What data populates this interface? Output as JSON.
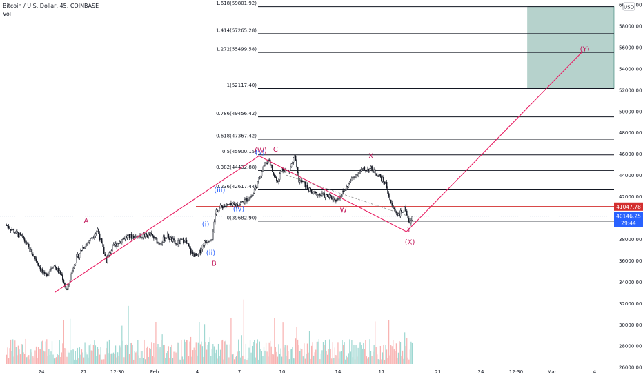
{
  "header": {
    "symbol": "Bitcoin / U.S. Dollar, 45, COINBASE",
    "volume_label": "Vol"
  },
  "currency_badge": "USD",
  "colors": {
    "candle": "#131722",
    "fib_line": "#131722",
    "wave_line": "#e91e63",
    "wave_red": "#c2185b",
    "wave_blue": "#2962ff",
    "target_box": "#2e7d6e",
    "resistance": "#d32f2f",
    "price_tag": "#2962ff",
    "dotted": "#90a4c8",
    "vol_up": "#26a69a",
    "vol_down": "#ef5350"
  },
  "chart_data": {
    "type": "candlestick",
    "x_tick_labels": [
      "24",
      "27",
      "12:30",
      "Feb",
      "4",
      "7",
      "10",
      "14",
      "17",
      "21",
      "24",
      "12:30",
      "Mar",
      "4"
    ],
    "y_axis": {
      "range": [
        26000,
        60000
      ],
      "tick_labels": [
        "60000.00",
        "58000.00",
        "56000.00",
        "54000.00",
        "52000.00",
        "50000.00",
        "48000.00",
        "46000.00",
        "44000.00",
        "42000.00",
        "40000.00",
        "38000.00",
        "36000.00",
        "34000.00",
        "32000.00",
        "30000.00",
        "28000.00",
        "26000.00"
      ]
    },
    "price_path": [
      [
        0,
        39300
      ],
      [
        4,
        38000
      ],
      [
        7,
        36000
      ],
      [
        9,
        34500
      ],
      [
        11,
        35600
      ],
      [
        13,
        34600
      ],
      [
        14.2,
        33100
      ],
      [
        16,
        35800
      ],
      [
        18,
        37200
      ],
      [
        20,
        38100
      ],
      [
        21.5,
        38900
      ],
      [
        23.5,
        36000
      ],
      [
        25,
        37200
      ],
      [
        28,
        38200
      ],
      [
        32,
        38300
      ],
      [
        34,
        38400
      ],
      [
        36,
        37600
      ],
      [
        38,
        38300
      ],
      [
        40,
        37500
      ],
      [
        42,
        38000
      ],
      [
        43.5,
        36800
      ],
      [
        45,
        36300
      ],
      [
        46.5,
        37600
      ],
      [
        48.5,
        38200
      ],
      [
        49.5,
        40700
      ],
      [
        51,
        41100
      ],
      [
        54,
        41200
      ],
      [
        56,
        41500
      ],
      [
        58,
        42100
      ],
      [
        59.5,
        43500
      ],
      [
        60.5,
        44800
      ],
      [
        62,
        45500
      ],
      [
        63,
        44000
      ],
      [
        64,
        43500
      ],
      [
        65,
        44600
      ],
      [
        66.5,
        44300
      ],
      [
        68,
        45700
      ],
      [
        69,
        43500
      ],
      [
        70,
        43300
      ],
      [
        72,
        42300
      ],
      [
        75,
        42100
      ],
      [
        78,
        41700
      ],
      [
        80,
        42700
      ],
      [
        82,
        43900
      ],
      [
        84,
        44500
      ],
      [
        86,
        44600
      ],
      [
        88,
        43900
      ],
      [
        89.5,
        43200
      ],
      [
        91,
        41000
      ],
      [
        92.5,
        40300
      ],
      [
        94,
        40800
      ],
      [
        95,
        39400
      ],
      [
        95.8,
        40146.25
      ]
    ],
    "wave_labels": [
      {
        "text": "A",
        "x": 18.8,
        "price": 39500,
        "color": "wave_red"
      },
      {
        "text": "B",
        "x": 49,
        "price": 35500,
        "color": "wave_red"
      },
      {
        "text": "C",
        "x": 63.5,
        "price": 46200,
        "color": "wave_red"
      },
      {
        "text": "(W)",
        "x": 60,
        "price": 46100,
        "color": "wave_red"
      },
      {
        "text": "W",
        "x": 79.5,
        "price": 40500,
        "color": "wave_red"
      },
      {
        "text": "X",
        "x": 86,
        "price": 45600,
        "color": "wave_red"
      },
      {
        "text": "Y",
        "x": 95,
        "price": 38700,
        "color": "wave_red"
      },
      {
        "text": "(X)",
        "x": 95.2,
        "price": 37500,
        "color": "wave_red"
      },
      {
        "text": "(Y)",
        "x": 136.5,
        "price": 55600,
        "color": "wave_red"
      },
      {
        "text": "(i)",
        "x": 47,
        "price": 39200,
        "color": "wave_blue"
      },
      {
        "text": "(ii)",
        "x": 48.2,
        "price": 36500,
        "color": "wave_blue"
      },
      {
        "text": "(iii)",
        "x": 50.3,
        "price": 42400,
        "color": "wave_blue"
      },
      {
        "text": "(iv)",
        "x": 54.8,
        "price": 40600,
        "color": "wave_blue"
      },
      {
        "text": "(v)",
        "x": 59.8,
        "price": 45900,
        "color": "wave_blue"
      }
    ],
    "wave_path": [
      [
        11.4,
        33000
      ],
      [
        59.6,
        45800
      ],
      [
        94.4,
        38700
      ],
      [
        136,
        55600
      ]
    ],
    "dotted_path": [
      [
        66,
        44000
      ],
      [
        94.5,
        40200
      ]
    ],
    "fib_levels": [
      {
        "label": "1.618(59801.92)",
        "price": 59801.92
      },
      {
        "label": "1.414(57265.28)",
        "price": 57265.28
      },
      {
        "label": "1.272(55499.58)",
        "price": 55499.58
      },
      {
        "label": "1(52117.40)",
        "price": 52117.4
      },
      {
        "label": "0.786(49456.42)",
        "price": 49456.42
      },
      {
        "label": "0.618(47367.42)",
        "price": 47367.42
      },
      {
        "label": "0.5(45900.15)",
        "price": 45900.15
      },
      {
        "label": "0.382(44432.88)",
        "price": 44432.88
      },
      {
        "label": "0.236(42617.44)",
        "price": 42617.44
      },
      {
        "label": "0(39682.90)",
        "price": 39682.9
      }
    ],
    "target_zone": {
      "price_low": 52117.4,
      "price_high": 59801.92
    },
    "resistance": {
      "price": 41047.78,
      "label": "41047.78"
    },
    "last_price": {
      "price": 40146.25,
      "label": "40146.25",
      "countdown": "29:44"
    },
    "horizontal_dotted": {
      "price": 40146.25
    }
  }
}
